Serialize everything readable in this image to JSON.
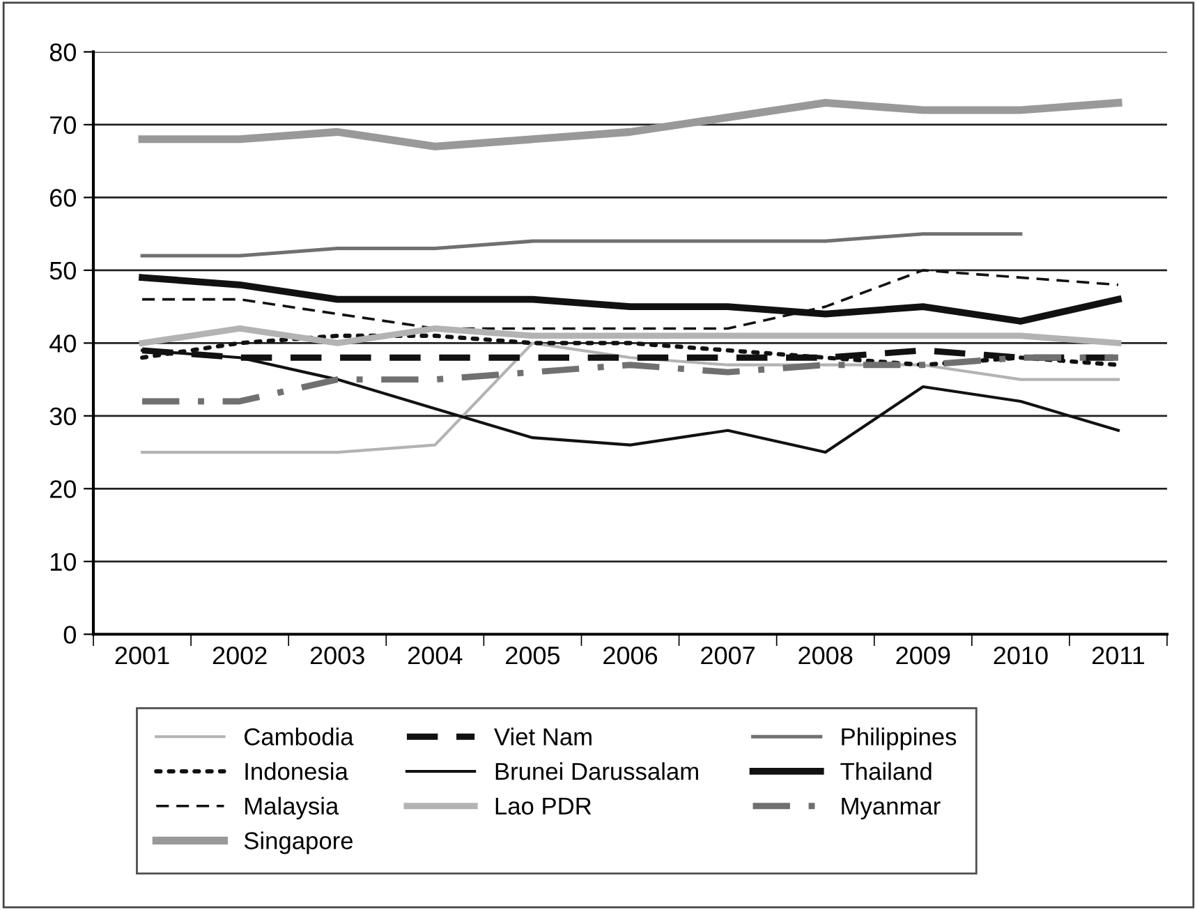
{
  "chart_data": {
    "type": "line",
    "categories": [
      "2001",
      "2002",
      "2003",
      "2004",
      "2005",
      "2006",
      "2007",
      "2008",
      "2009",
      "2010",
      "2011"
    ],
    "ylim": [
      0,
      80
    ],
    "yticks": [
      0,
      10,
      20,
      30,
      40,
      50,
      60,
      70,
      80
    ],
    "grid": "y",
    "legend": "bottom",
    "marker": "none",
    "series": [
      {
        "name": "Cambodia",
        "color": "#b3b3b3",
        "line_style": "solid",
        "values": [
          25,
          25,
          25,
          26,
          40,
          38,
          37,
          37,
          37,
          35,
          35
        ]
      },
      {
        "name": "Indonesia",
        "color": "#111111",
        "line_style": "dotted",
        "values": [
          38,
          40,
          41,
          41,
          40,
          40,
          39,
          38,
          37,
          38,
          37
        ]
      },
      {
        "name": "Malaysia",
        "color": "#111111",
        "line_style": "dashed",
        "values": [
          46,
          46,
          44,
          42,
          42,
          42,
          42,
          45,
          50,
          49,
          48
        ]
      },
      {
        "name": "Singapore",
        "color": "#999999",
        "line_style": "solid",
        "values": [
          68,
          68,
          69,
          67,
          68,
          69,
          71,
          73,
          72,
          72,
          73
        ]
      },
      {
        "name": "Viet Nam",
        "color": "#111111",
        "line_style": "dashed",
        "values": [
          39,
          38,
          38,
          38,
          38,
          38,
          38,
          38,
          39,
          38,
          38
        ]
      },
      {
        "name": "Brunei Darussalam",
        "color": "#111111",
        "line_style": "solid",
        "values": [
          39,
          38,
          35,
          31,
          27,
          26,
          28,
          25,
          34,
          32,
          28
        ]
      },
      {
        "name": "Lao PDR",
        "color": "#b3b3b3",
        "line_style": "solid",
        "values": [
          40,
          42,
          40,
          42,
          41,
          41,
          41,
          41,
          41,
          41,
          40
        ]
      },
      {
        "name": "Philippines",
        "color": "#707070",
        "line_style": "solid",
        "values": [
          52,
          52,
          53,
          53,
          54,
          54,
          54,
          54,
          55,
          55,
          null
        ]
      },
      {
        "name": "Thailand",
        "color": "#111111",
        "line_style": "solid",
        "values": [
          49,
          48,
          46,
          46,
          46,
          45,
          45,
          44,
          45,
          43,
          46
        ]
      },
      {
        "name": "Myanmar",
        "color": "#707070",
        "line_style": "dashdot",
        "values": [
          32,
          32,
          35,
          35,
          36,
          37,
          36,
          37,
          37,
          38,
          38
        ]
      }
    ]
  }
}
